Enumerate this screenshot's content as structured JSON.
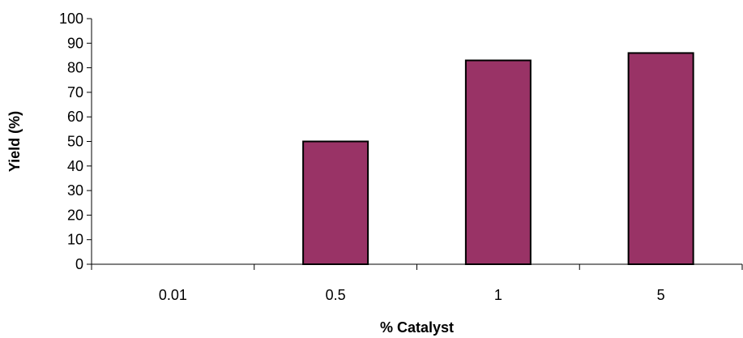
{
  "chart_data": {
    "type": "bar",
    "title": "",
    "xlabel": "% Catalyst",
    "ylabel": "Yield (%)",
    "categories": [
      "0.01",
      "0.5",
      "1",
      "5"
    ],
    "values": [
      0,
      50,
      83,
      86
    ],
    "ylim": [
      0,
      100
    ],
    "yticks": [
      0,
      10,
      20,
      30,
      40,
      50,
      60,
      70,
      80,
      90,
      100
    ],
    "grid": false,
    "legend": "none",
    "colors": {
      "bar_fill": "#993366",
      "bar_stroke": "#000000",
      "axis": "#000000"
    }
  }
}
